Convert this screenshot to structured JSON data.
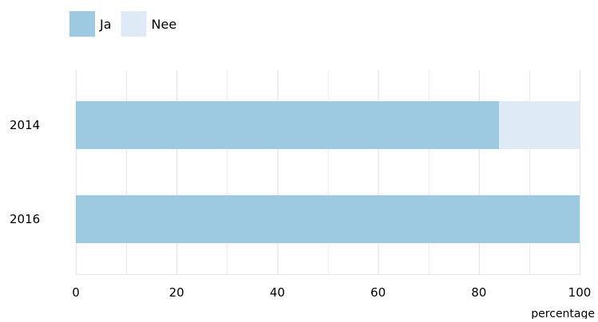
{
  "chart_data": {
    "type": "bar",
    "orientation": "horizontal",
    "stacked": true,
    "categories": [
      "2014",
      "2016"
    ],
    "series": [
      {
        "name": "Ja",
        "values": [
          84,
          100
        ],
        "color": "#9ecae1"
      },
      {
        "name": "Nee",
        "values": [
          16,
          0
        ],
        "color": "#deebf7"
      }
    ],
    "xlabel": "percentage",
    "ylabel": "",
    "title": "",
    "xlim": [
      0,
      100
    ],
    "xticks": [
      0,
      20,
      40,
      60,
      80,
      100
    ],
    "grid": true,
    "grid_color": "#e6e6e6",
    "axis_color": "#e6e6e6",
    "legend_placement": "top-left"
  }
}
